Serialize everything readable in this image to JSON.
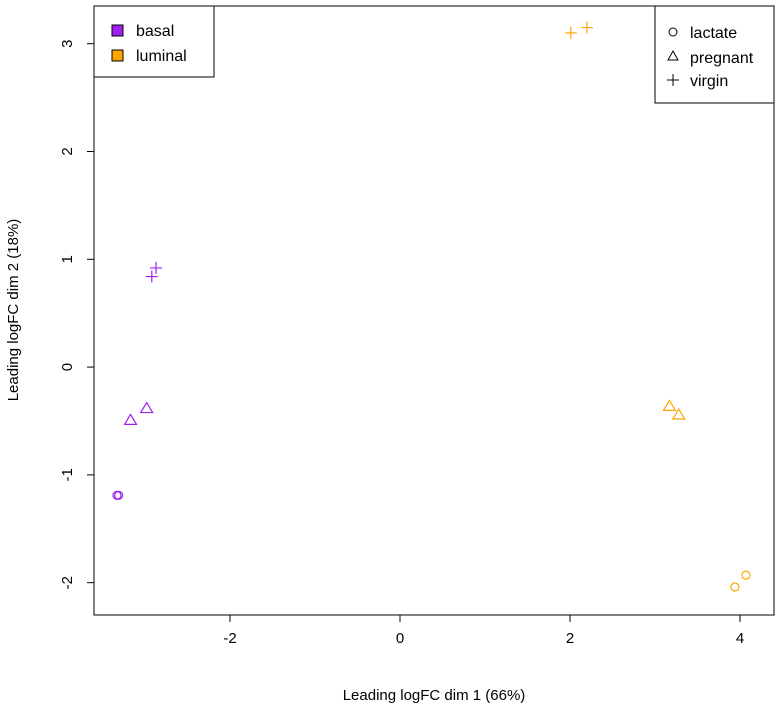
{
  "chart_data": {
    "type": "scatter",
    "xlabel": "Leading logFC dim 1 (66%)",
    "ylabel": "Leading logFC dim 2 (18%)",
    "xlim": [
      -3.6,
      4.4
    ],
    "ylim": [
      -2.3,
      3.35
    ],
    "x_ticks": [
      -2,
      0,
      2,
      4
    ],
    "x_tick_labels": [
      "-2",
      "0",
      "2",
      "4"
    ],
    "y_ticks": [
      -2,
      -1,
      0,
      1,
      2,
      3
    ],
    "y_tick_labels": [
      "-2",
      "-1",
      "0",
      "1",
      "2",
      "3"
    ],
    "grid": false,
    "color_legend": {
      "placement": "top-left",
      "entries": [
        {
          "label": "basal",
          "color": "#A020F0"
        },
        {
          "label": "luminal",
          "color": "#FFA500"
        }
      ]
    },
    "shape_legend": {
      "placement": "top-right",
      "entries": [
        {
          "label": "lactate",
          "shape": "circle"
        },
        {
          "label": "pregnant",
          "shape": "triangle"
        },
        {
          "label": "virgin",
          "shape": "plus"
        }
      ]
    },
    "points": [
      {
        "x": -3.33,
        "y": -1.19,
        "group": "basal",
        "condition": "lactate"
      },
      {
        "x": -3.31,
        "y": -1.19,
        "group": "basal",
        "condition": "lactate"
      },
      {
        "x": -3.17,
        "y": -0.49,
        "group": "basal",
        "condition": "pregnant"
      },
      {
        "x": -2.98,
        "y": -0.38,
        "group": "basal",
        "condition": "pregnant"
      },
      {
        "x": -2.92,
        "y": 0.84,
        "group": "basal",
        "condition": "virgin"
      },
      {
        "x": -2.87,
        "y": 0.92,
        "group": "basal",
        "condition": "virgin"
      },
      {
        "x": 2.01,
        "y": 3.1,
        "group": "luminal",
        "condition": "virgin"
      },
      {
        "x": 2.2,
        "y": 3.15,
        "group": "luminal",
        "condition": "virgin"
      },
      {
        "x": 3.17,
        "y": -0.36,
        "group": "luminal",
        "condition": "pregnant"
      },
      {
        "x": 3.28,
        "y": -0.44,
        "group": "luminal",
        "condition": "pregnant"
      },
      {
        "x": 3.94,
        "y": -2.04,
        "group": "luminal",
        "condition": "lactate"
      },
      {
        "x": 4.07,
        "y": -1.93,
        "group": "luminal",
        "condition": "lactate"
      }
    ]
  }
}
